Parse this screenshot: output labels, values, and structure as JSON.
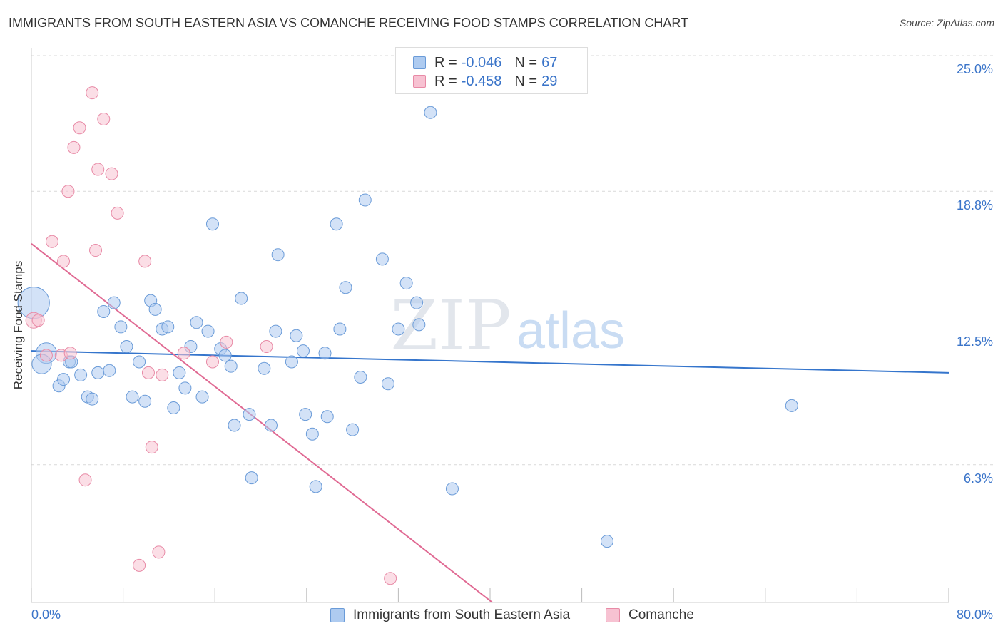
{
  "title": "IMMIGRANTS FROM SOUTH EASTERN ASIA VS COMANCHE RECEIVING FOOD STAMPS CORRELATION CHART",
  "source": "Source: ZipAtlas.com",
  "watermark": {
    "zip": "ZIP",
    "atlas": "atlas"
  },
  "legend": {
    "r_label": "R =",
    "n_label": "N =",
    "rows": [
      {
        "r": "-0.046",
        "n": "67",
        "fill": "#aecbf0",
        "stroke": "#6a9bd8"
      },
      {
        "r": "-0.458",
        "n": "29",
        "fill": "#f7c2d2",
        "stroke": "#e88aa6"
      }
    ]
  },
  "chart_data": {
    "type": "scatter",
    "title": "IMMIGRANTS FROM SOUTH EASTERN ASIA VS COMANCHE RECEIVING FOOD STAMPS CORRELATION CHART",
    "xlabel": "",
    "ylabel": "Receiving Food Stamps",
    "xlim": [
      0,
      80
    ],
    "ylim": [
      0,
      25
    ],
    "x_tick_labels": [
      "0.0%",
      "80.0%"
    ],
    "y_ticks": [
      6.3,
      12.5,
      18.8,
      25.0
    ],
    "y_tick_labels": [
      "6.3%",
      "12.5%",
      "18.8%",
      "25.0%"
    ],
    "grid": "horizontal dashed",
    "legend_position": "top-center",
    "colors": {
      "blue_fill": "#aecbf0",
      "blue_stroke": "#6a9bd8",
      "blue_line": "#3575cc",
      "pink_fill": "#f7c2d2",
      "pink_stroke": "#e88aa6",
      "pink_line": "#e06a93",
      "tick": "#3a74c9"
    },
    "series": [
      {
        "name": "Immigrants from South Eastern Asia",
        "trend": {
          "x": [
            0,
            80
          ],
          "y": [
            11.5,
            10.5
          ]
        },
        "points": [
          [
            0.2,
            13.7,
            2.6
          ],
          [
            1.3,
            11.4,
            1.7
          ],
          [
            0.9,
            10.9,
            1.6
          ],
          [
            2.4,
            9.9,
            1.0
          ],
          [
            2.8,
            10.2,
            1.0
          ],
          [
            3.3,
            11.0,
            1.0
          ],
          [
            3.5,
            11.0,
            1.0
          ],
          [
            4.3,
            10.4,
            1.0
          ],
          [
            4.9,
            9.4,
            1.0
          ],
          [
            5.3,
            9.3,
            1.0
          ],
          [
            5.8,
            10.5,
            1.0
          ],
          [
            6.3,
            13.3,
            1.0
          ],
          [
            6.8,
            10.6,
            1.0
          ],
          [
            7.2,
            13.7,
            1.0
          ],
          [
            7.8,
            12.6,
            1.0
          ],
          [
            8.3,
            11.7,
            1.0
          ],
          [
            8.8,
            9.4,
            1.0
          ],
          [
            9.4,
            11.0,
            1.0
          ],
          [
            9.9,
            9.2,
            1.0
          ],
          [
            10.4,
            13.8,
            1.0
          ],
          [
            10.8,
            13.4,
            1.0
          ],
          [
            11.4,
            12.5,
            1.0
          ],
          [
            11.9,
            12.6,
            1.0
          ],
          [
            12.4,
            8.9,
            1.0
          ],
          [
            12.9,
            10.5,
            1.0
          ],
          [
            13.4,
            9.8,
            1.0
          ],
          [
            13.9,
            11.7,
            1.0
          ],
          [
            14.4,
            12.8,
            1.0
          ],
          [
            14.9,
            9.4,
            1.0
          ],
          [
            15.4,
            12.4,
            1.0
          ],
          [
            15.8,
            17.3,
            1.0
          ],
          [
            16.5,
            11.6,
            1.0
          ],
          [
            16.9,
            11.3,
            1.0
          ],
          [
            17.4,
            10.8,
            1.0
          ],
          [
            17.7,
            8.1,
            1.0
          ],
          [
            18.3,
            13.9,
            1.0
          ],
          [
            19.0,
            8.6,
            1.0
          ],
          [
            19.2,
            5.7,
            1.0
          ],
          [
            20.3,
            10.7,
            1.0
          ],
          [
            20.9,
            8.1,
            1.0
          ],
          [
            21.3,
            12.4,
            1.0
          ],
          [
            21.5,
            15.9,
            1.0
          ],
          [
            22.7,
            11.0,
            1.0
          ],
          [
            23.1,
            12.2,
            1.0
          ],
          [
            23.7,
            11.5,
            1.0
          ],
          [
            23.9,
            8.6,
            1.0
          ],
          [
            24.5,
            7.7,
            1.0
          ],
          [
            24.8,
            5.3,
            1.0
          ],
          [
            25.6,
            11.4,
            1.0
          ],
          [
            25.8,
            8.5,
            1.0
          ],
          [
            26.6,
            17.3,
            1.0
          ],
          [
            26.9,
            12.5,
            1.0
          ],
          [
            27.4,
            14.4,
            1.0
          ],
          [
            28.0,
            7.9,
            1.0
          ],
          [
            28.7,
            10.3,
            1.0
          ],
          [
            29.1,
            18.4,
            1.0
          ],
          [
            30.6,
            15.7,
            1.0
          ],
          [
            31.1,
            10.0,
            1.0
          ],
          [
            32.0,
            12.5,
            1.0
          ],
          [
            32.7,
            14.6,
            1.0
          ],
          [
            33.6,
            13.7,
            1.0
          ],
          [
            33.8,
            12.7,
            1.0
          ],
          [
            34.8,
            22.4,
            1.0
          ],
          [
            36.7,
            5.2,
            1.0
          ],
          [
            50.2,
            2.8,
            1.0
          ],
          [
            66.3,
            9.0,
            1.0
          ]
        ]
      },
      {
        "name": "Comanche",
        "trend": {
          "x": [
            0,
            40.2
          ],
          "y": [
            16.4,
            0
          ]
        },
        "points": [
          [
            0.2,
            12.9,
            1.3
          ],
          [
            0.6,
            12.9,
            1.0
          ],
          [
            1.3,
            11.3,
            1.0
          ],
          [
            1.8,
            16.5,
            1.0
          ],
          [
            2.6,
            11.3,
            1.0
          ],
          [
            2.8,
            15.6,
            1.0
          ],
          [
            3.2,
            18.8,
            1.0
          ],
          [
            3.4,
            11.4,
            1.0
          ],
          [
            3.7,
            20.8,
            1.0
          ],
          [
            4.2,
            21.7,
            1.0
          ],
          [
            4.7,
            5.6,
            1.0
          ],
          [
            5.3,
            23.3,
            1.0
          ],
          [
            5.6,
            16.1,
            1.0
          ],
          [
            5.8,
            19.8,
            1.0
          ],
          [
            6.3,
            22.1,
            1.0
          ],
          [
            7.0,
            19.6,
            1.0
          ],
          [
            7.5,
            17.8,
            1.0
          ],
          [
            9.4,
            1.7,
            1.0
          ],
          [
            9.9,
            15.6,
            1.0
          ],
          [
            10.2,
            10.5,
            1.0
          ],
          [
            10.5,
            7.1,
            1.0
          ],
          [
            11.1,
            2.3,
            1.0
          ],
          [
            11.4,
            10.4,
            1.0
          ],
          [
            13.3,
            11.4,
            1.0
          ],
          [
            15.8,
            11.0,
            1.0
          ],
          [
            17.0,
            11.9,
            1.0
          ],
          [
            20.5,
            11.7,
            1.0
          ],
          [
            31.3,
            1.1,
            1.0
          ]
        ]
      }
    ]
  },
  "bottom_legend": [
    {
      "label": "Immigrants from South Eastern Asia"
    },
    {
      "label": "Comanche"
    }
  ]
}
